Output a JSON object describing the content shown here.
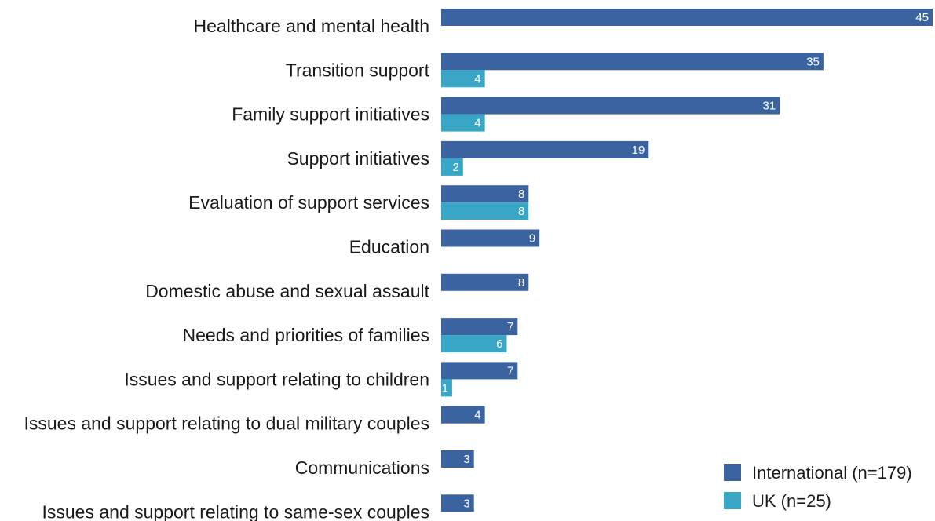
{
  "colors": {
    "international": "#3b63a0",
    "uk": "#3aa6c6"
  },
  "chart_data": {
    "type": "bar",
    "orientation": "horizontal",
    "categories": [
      "Healthcare and mental health",
      "Transition support",
      "Family support initiatives",
      "Support initiatives",
      "Evaluation of support services",
      "Education",
      "Domestic abuse and sexual assault",
      "Needs and priorities of families",
      "Issues and support relating to children",
      "Issues and support relating to dual military couples",
      "Communications",
      "Issues and support relating to same-sex couples"
    ],
    "series": [
      {
        "name": "International (n=179)",
        "values": [
          45,
          35,
          31,
          19,
          8,
          9,
          8,
          7,
          7,
          4,
          3,
          3
        ]
      },
      {
        "name": "UK (n=25)",
        "values": [
          null,
          4,
          4,
          2,
          8,
          null,
          null,
          6,
          1,
          null,
          null,
          null
        ]
      }
    ],
    "title": "",
    "xlabel": "",
    "ylabel": "",
    "xlim": [
      0,
      45
    ],
    "grid": false,
    "legend_position": "bottom-right"
  }
}
